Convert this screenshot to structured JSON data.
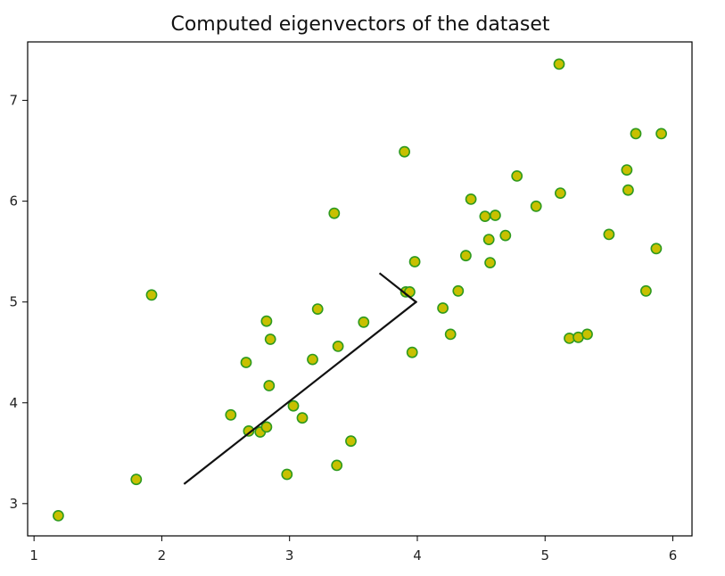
{
  "chart_data": {
    "type": "scatter",
    "title": "Computed eigenvectors of the dataset",
    "xlabel": "",
    "ylabel": "",
    "xlim": [
      0.95,
      6.15
    ],
    "ylim": [
      2.68,
      7.58
    ],
    "xticks": [
      1,
      2,
      3,
      4,
      5,
      6
    ],
    "yticks": [
      3,
      4,
      5,
      6,
      7
    ],
    "grid": false,
    "colors": {
      "marker_face": "#c8c000",
      "marker_edge": "#2e9a1e",
      "line": "#111111",
      "axes": "#000000"
    },
    "points": [
      [
        1.19,
        2.88
      ],
      [
        1.8,
        3.24
      ],
      [
        1.92,
        5.07
      ],
      [
        2.54,
        3.88
      ],
      [
        2.66,
        4.4
      ],
      [
        2.68,
        3.72
      ],
      [
        2.77,
        3.71
      ],
      [
        2.82,
        3.76
      ],
      [
        2.82,
        4.81
      ],
      [
        2.85,
        4.63
      ],
      [
        2.84,
        4.17
      ],
      [
        2.98,
        3.29
      ],
      [
        3.03,
        3.97
      ],
      [
        3.1,
        3.85
      ],
      [
        3.18,
        4.43
      ],
      [
        3.22,
        4.93
      ],
      [
        3.35,
        5.88
      ],
      [
        3.37,
        3.38
      ],
      [
        3.38,
        4.56
      ],
      [
        3.48,
        3.62
      ],
      [
        3.58,
        4.8
      ],
      [
        3.9,
        6.49
      ],
      [
        3.91,
        5.1
      ],
      [
        3.94,
        5.1
      ],
      [
        3.96,
        4.5
      ],
      [
        3.98,
        5.4
      ],
      [
        4.2,
        4.94
      ],
      [
        4.26,
        4.68
      ],
      [
        4.32,
        5.11
      ],
      [
        4.38,
        5.46
      ],
      [
        4.42,
        6.02
      ],
      [
        4.53,
        5.85
      ],
      [
        4.56,
        5.62
      ],
      [
        4.57,
        5.39
      ],
      [
        4.61,
        5.86
      ],
      [
        4.69,
        5.66
      ],
      [
        4.78,
        6.25
      ],
      [
        4.93,
        5.95
      ],
      [
        5.11,
        7.36
      ],
      [
        5.12,
        6.08
      ],
      [
        5.19,
        4.64
      ],
      [
        5.26,
        4.65
      ],
      [
        5.33,
        4.68
      ],
      [
        5.5,
        5.67
      ],
      [
        5.64,
        6.31
      ],
      [
        5.65,
        6.11
      ],
      [
        5.71,
        6.67
      ],
      [
        5.79,
        5.11
      ],
      [
        5.87,
        5.53
      ],
      [
        5.91,
        6.67
      ]
    ],
    "eigenvector_lines": [
      {
        "from": [
          3.99,
          5.0
        ],
        "to": [
          2.18,
          3.2
        ]
      },
      {
        "from": [
          3.99,
          5.0
        ],
        "to": [
          3.71,
          5.28
        ]
      }
    ]
  }
}
